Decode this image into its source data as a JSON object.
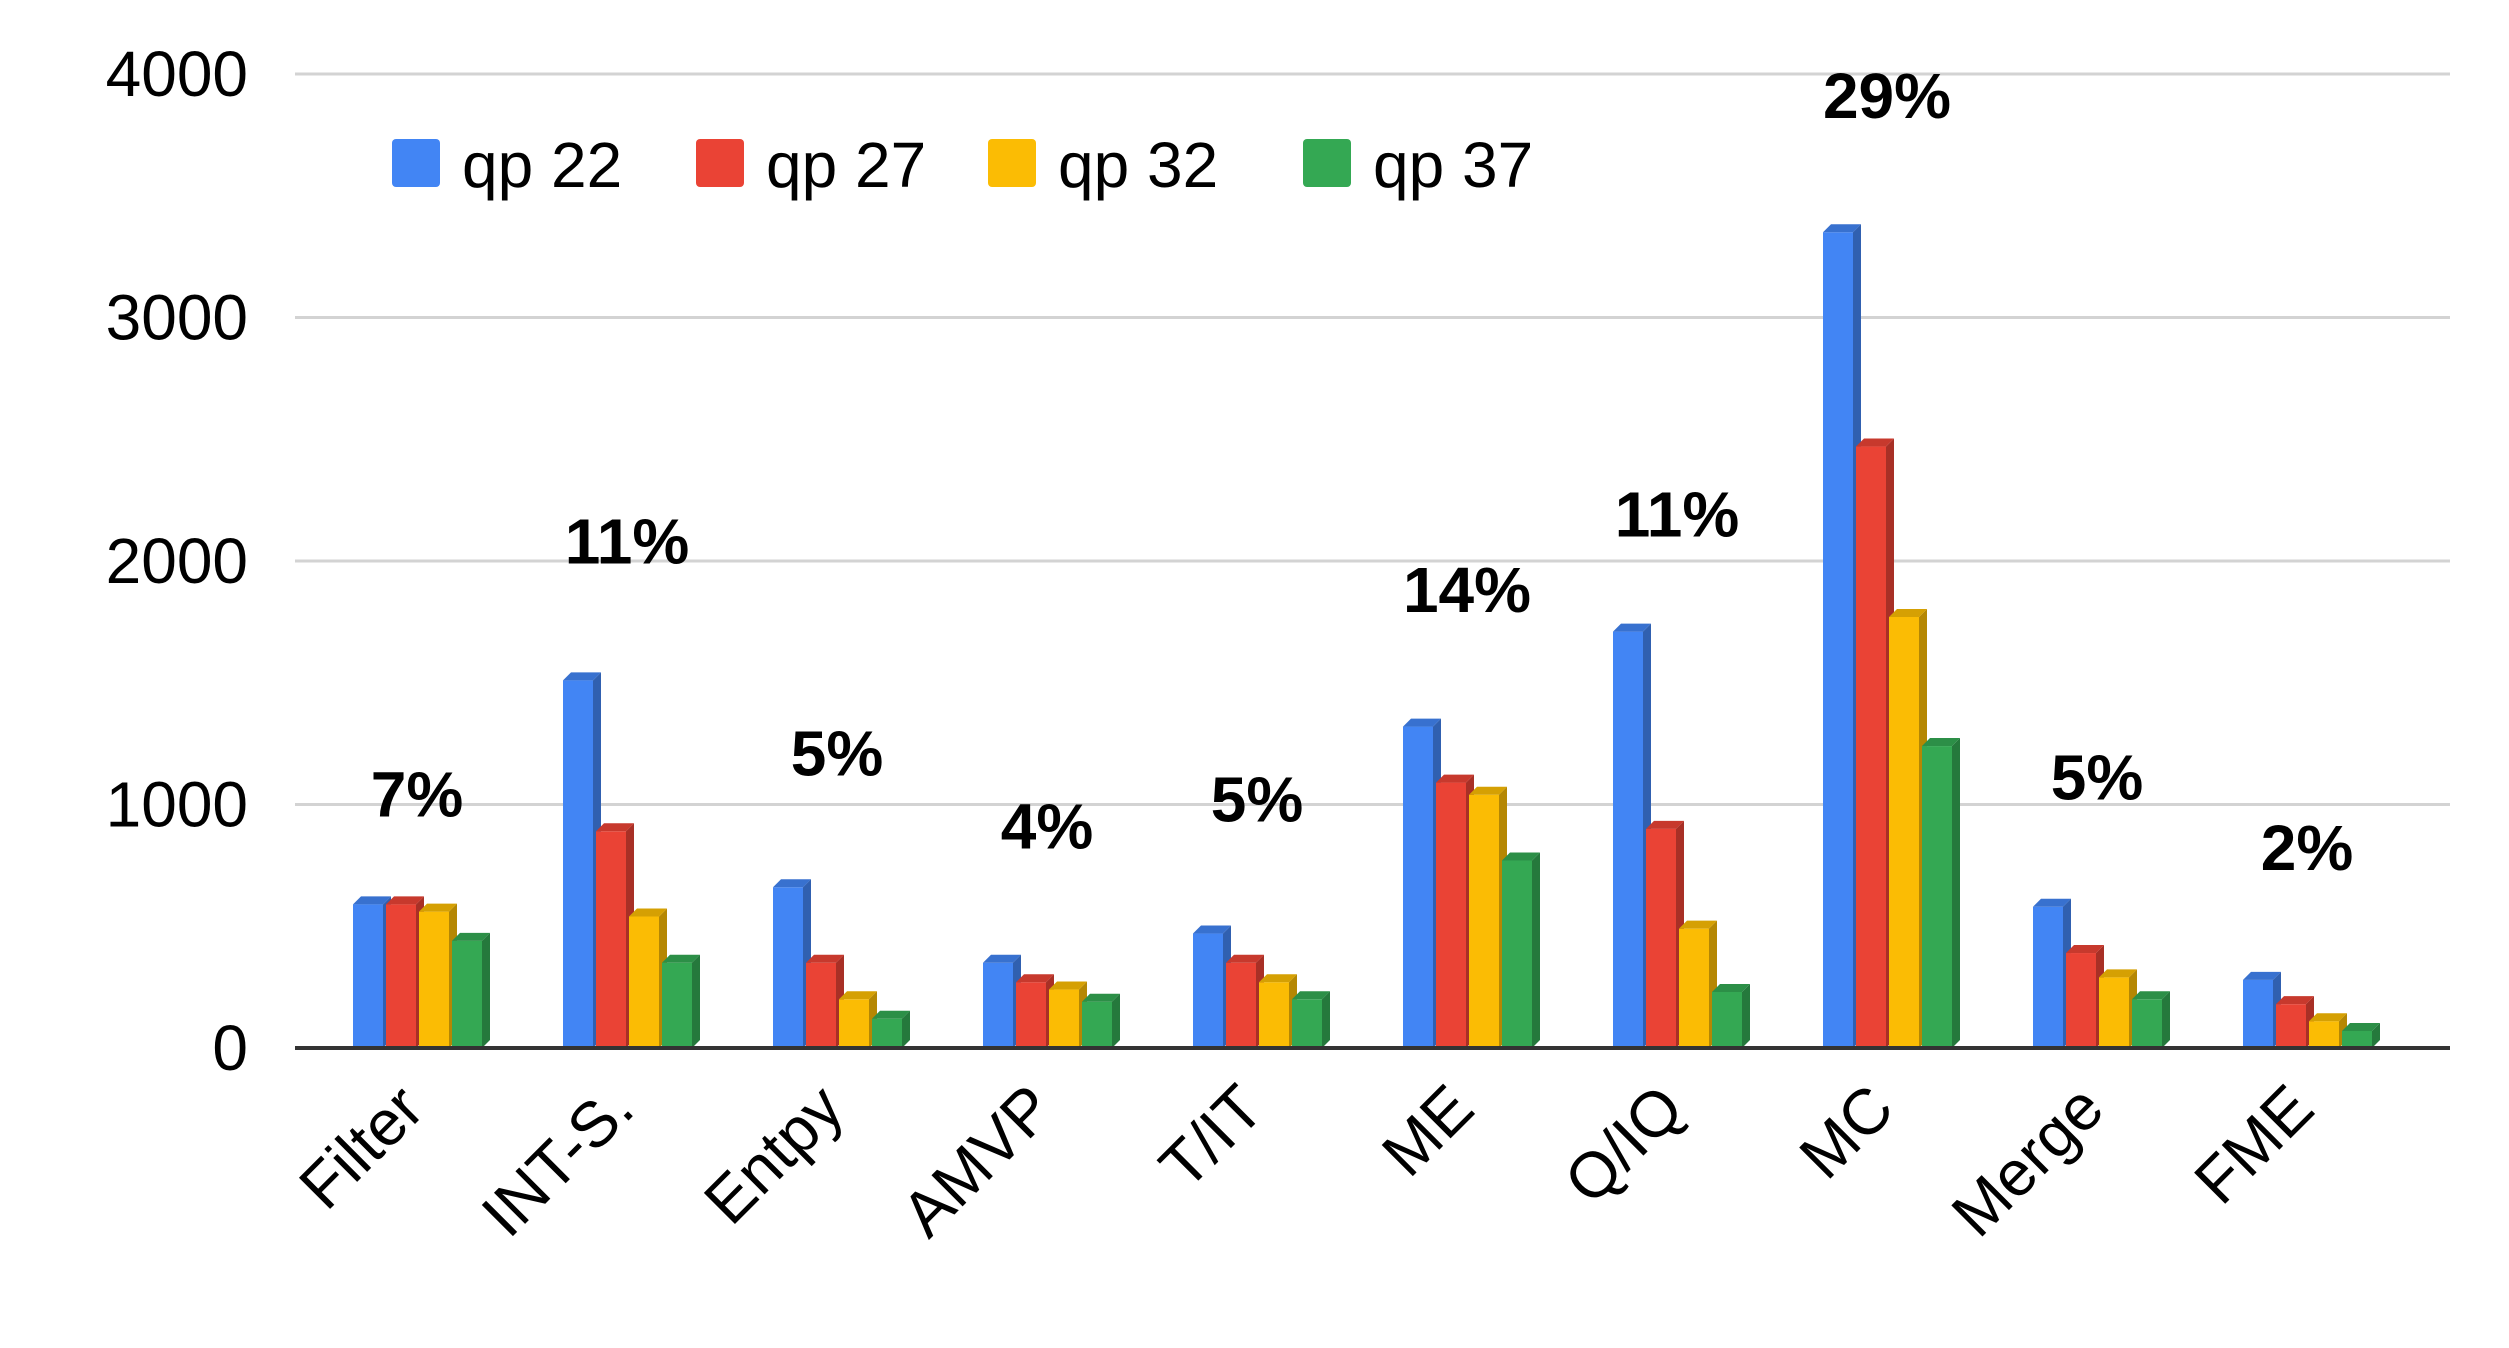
{
  "chart_data": {
    "type": "bar",
    "title": "",
    "xlabel": "",
    "ylabel": "",
    "ylim": [
      0,
      4000
    ],
    "yticks": [
      "0",
      "1000",
      "2000",
      "3000",
      "4000"
    ],
    "grid": true,
    "legend_position": "top-left",
    "categories": [
      "Filter",
      "INT-S.",
      "Entpy",
      "AMVP",
      "T/IT",
      "ME",
      "Q/IQ",
      "MC",
      "Merge",
      "FME"
    ],
    "series": [
      {
        "name": "qp 22",
        "color": "#4285f4",
        "values": [
          590,
          1510,
          660,
          350,
          470,
          1320,
          1710,
          3350,
          580,
          280
        ]
      },
      {
        "name": "qp 27",
        "color": "#ea4335",
        "values": [
          590,
          890,
          350,
          270,
          350,
          1090,
          900,
          2470,
          390,
          180
        ]
      },
      {
        "name": "qp 32",
        "color": "#fbbc04",
        "values": [
          560,
          540,
          200,
          240,
          270,
          1040,
          490,
          1770,
          290,
          110
        ]
      },
      {
        "name": "qp 37",
        "color": "#34a853",
        "values": [
          440,
          350,
          120,
          190,
          200,
          770,
          230,
          1240,
          200,
          70
        ]
      }
    ],
    "annotations": [
      "7%",
      "11%",
      "5%",
      "4%",
      "5%",
      "14%",
      "11%",
      "29%",
      "5%",
      "2%"
    ],
    "annotation_values": [
      950,
      1990,
      1120,
      820,
      930,
      1790,
      2100,
      3820,
      1020,
      730
    ]
  }
}
